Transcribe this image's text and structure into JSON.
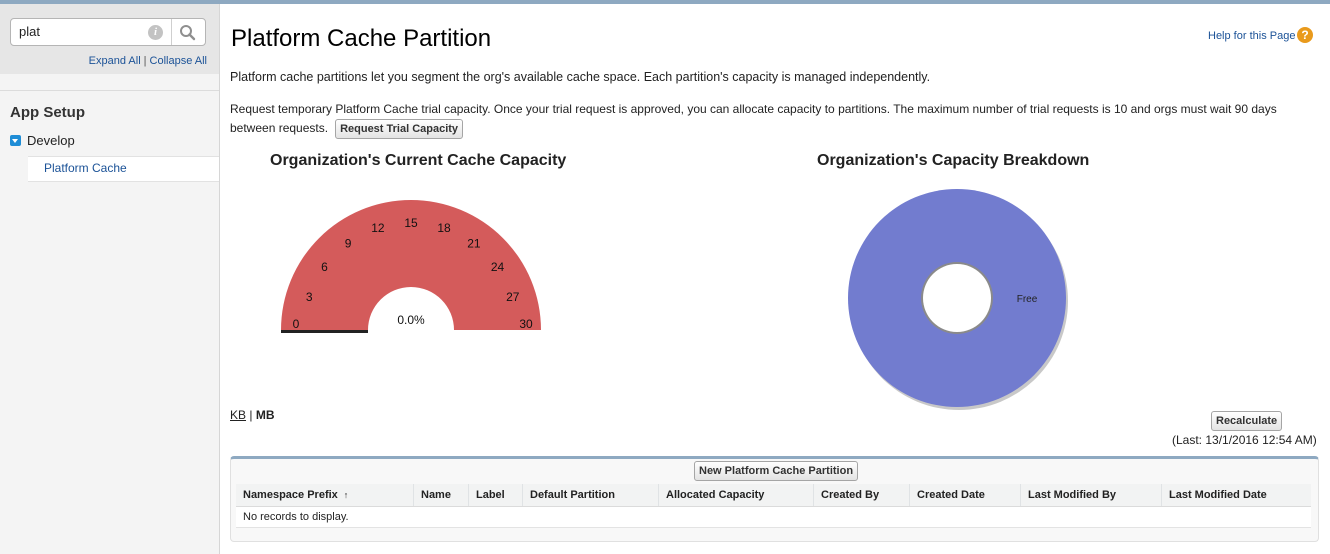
{
  "sidebar": {
    "search": {
      "value": "plat",
      "placeholder": ""
    },
    "expand_all": "Expand All",
    "separator": "|",
    "collapse_all": "Collapse All",
    "section_title": "App Setup",
    "group": {
      "label": "Develop",
      "expanded": true
    },
    "active_item": "Platform Cache"
  },
  "page": {
    "title": "Platform Cache Partition",
    "help_link": "Help for this Page",
    "help_icon": "question-icon",
    "description": "Platform cache partitions let you segment the org's available cache space. Each partition's capacity is managed independently.",
    "trial_text": "Request temporary Platform Cache trial capacity. Once your trial request is approved, you can allocate capacity to partitions. The maximum number of trial requests is 10 and orgs must wait 90 days between requests.",
    "trial_button": "Request Trial Capacity"
  },
  "gauge": {
    "title": "Organization's Current Cache Capacity",
    "center_label": "0.0%",
    "min": 0,
    "max": 30,
    "value": 0,
    "ticks": [
      "0",
      "3",
      "6",
      "9",
      "12",
      "15",
      "18",
      "21",
      "24",
      "27",
      "30"
    ],
    "color": "#d45b5b"
  },
  "chart_data": {
    "type": "pie",
    "title": "Organization's Capacity Breakdown",
    "categories": [
      "Free"
    ],
    "values": [
      100
    ],
    "colors": [
      "#727ccf"
    ]
  },
  "units": {
    "kb": "KB",
    "separator": "|",
    "mb": "MB",
    "selected": "MB"
  },
  "recalculate_button": "Recalculate",
  "last_calculated": "(Last: 13/1/2016 12:54 AM)",
  "table": {
    "new_button": "New Platform Cache Partition",
    "sort_arrow": "↑",
    "columns": [
      "Namespace Prefix",
      "Name",
      "Label",
      "Default Partition",
      "Allocated Capacity",
      "Created By",
      "Created Date",
      "Last Modified By",
      "Last Modified Date"
    ],
    "empty_message": "No records to display."
  },
  "colors": {
    "link": "#1b5297",
    "accent_bar": "#8ea9c1",
    "tree_toggle": "#1f8dd6",
    "help_icon": "#e99a1c"
  }
}
